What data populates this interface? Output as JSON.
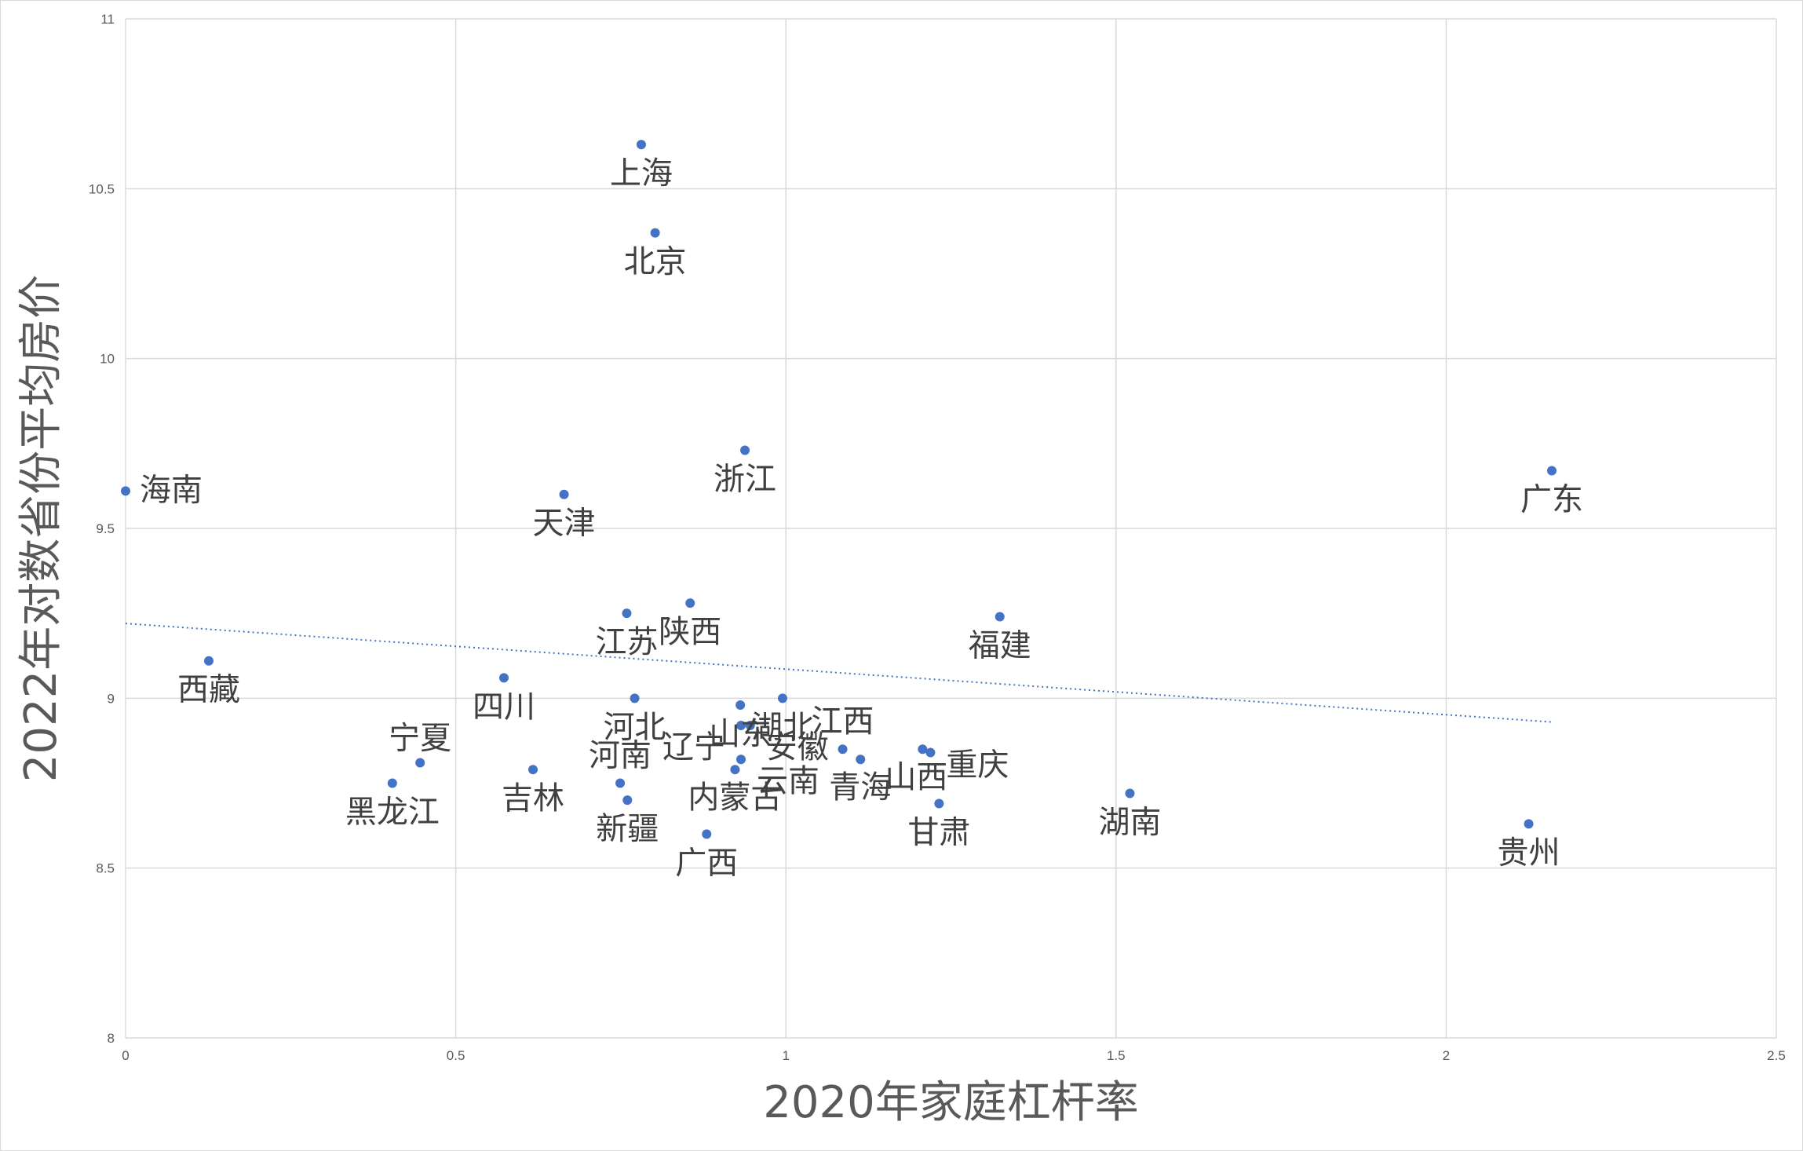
{
  "chart_data": {
    "type": "scatter",
    "xlabel": "2020年家庭杠杆率",
    "ylabel": "2022年对数省份平均房价",
    "xlim": [
      0,
      2.5
    ],
    "ylim": [
      8,
      11
    ],
    "x_ticks": [
      0,
      0.5,
      1,
      1.5,
      2,
      2.5
    ],
    "x_tick_labels": [
      "0",
      "0.5",
      "1",
      "1.5",
      "2",
      "2.5"
    ],
    "y_ticks": [
      8,
      8.5,
      9,
      9.5,
      10,
      10.5,
      11
    ],
    "y_tick_labels": [
      "8",
      "8.5",
      "9",
      "9.5",
      "10",
      "10.5",
      "11"
    ],
    "grid": true,
    "legend": "none",
    "marker_color": "#4472c4",
    "trendline": {
      "type": "linear",
      "style": "dotted",
      "color": "#4472c4",
      "x": [
        0,
        2.16
      ],
      "y": [
        9.22,
        8.93
      ]
    },
    "points": [
      {
        "label": "上海",
        "x": 0.781,
        "y": 10.63
      },
      {
        "label": "北京",
        "x": 0.802,
        "y": 10.37
      },
      {
        "label": "海南",
        "x": 0.0,
        "y": 9.61
      },
      {
        "label": "天津",
        "x": 0.664,
        "y": 9.6
      },
      {
        "label": "浙江",
        "x": 0.938,
        "y": 9.73
      },
      {
        "label": "广东",
        "x": 2.16,
        "y": 9.67
      },
      {
        "label": "福建",
        "x": 1.324,
        "y": 9.24
      },
      {
        "label": "陕西",
        "x": 0.855,
        "y": 9.28
      },
      {
        "label": "江苏",
        "x": 0.759,
        "y": 9.25
      },
      {
        "label": "河北",
        "x": 0.771,
        "y": 9.0
      },
      {
        "label": "山东",
        "x": 0.931,
        "y": 8.98
      },
      {
        "label": "湖北",
        "x": 0.995,
        "y": 9.0
      },
      {
        "label": "西藏",
        "x": 0.126,
        "y": 9.11
      },
      {
        "label": "四川",
        "x": 0.573,
        "y": 9.06
      },
      {
        "label": "宁夏",
        "x": 0.446,
        "y": 8.81
      },
      {
        "label": "黑龙江",
        "x": 0.404,
        "y": 8.75
      },
      {
        "label": "吉林",
        "x": 0.617,
        "y": 8.79
      },
      {
        "label": "辽宁",
        "x": 0.932,
        "y": 8.92
      },
      {
        "label": "安徽",
        "x": 0.946,
        "y": 8.92
      },
      {
        "label": "江西",
        "x": 1.086,
        "y": 8.85
      },
      {
        "label": "云南",
        "x": 0.932,
        "y": 8.82
      },
      {
        "label": "河南",
        "x": 0.749,
        "y": 8.75
      },
      {
        "label": "内蒙古",
        "x": 0.923,
        "y": 8.79
      },
      {
        "label": "新疆",
        "x": 0.76,
        "y": 8.7
      },
      {
        "label": "广西",
        "x": 0.88,
        "y": 8.6
      },
      {
        "label": "青海",
        "x": 1.113,
        "y": 8.82
      },
      {
        "label": "山西",
        "x": 1.207,
        "y": 8.85
      },
      {
        "label": "重庆",
        "x": 1.219,
        "y": 8.84
      },
      {
        "label": "甘肃",
        "x": 1.232,
        "y": 8.69
      },
      {
        "label": "湖南",
        "x": 1.521,
        "y": 8.72
      },
      {
        "label": "贵州",
        "x": 2.125,
        "y": 8.63
      }
    ]
  }
}
